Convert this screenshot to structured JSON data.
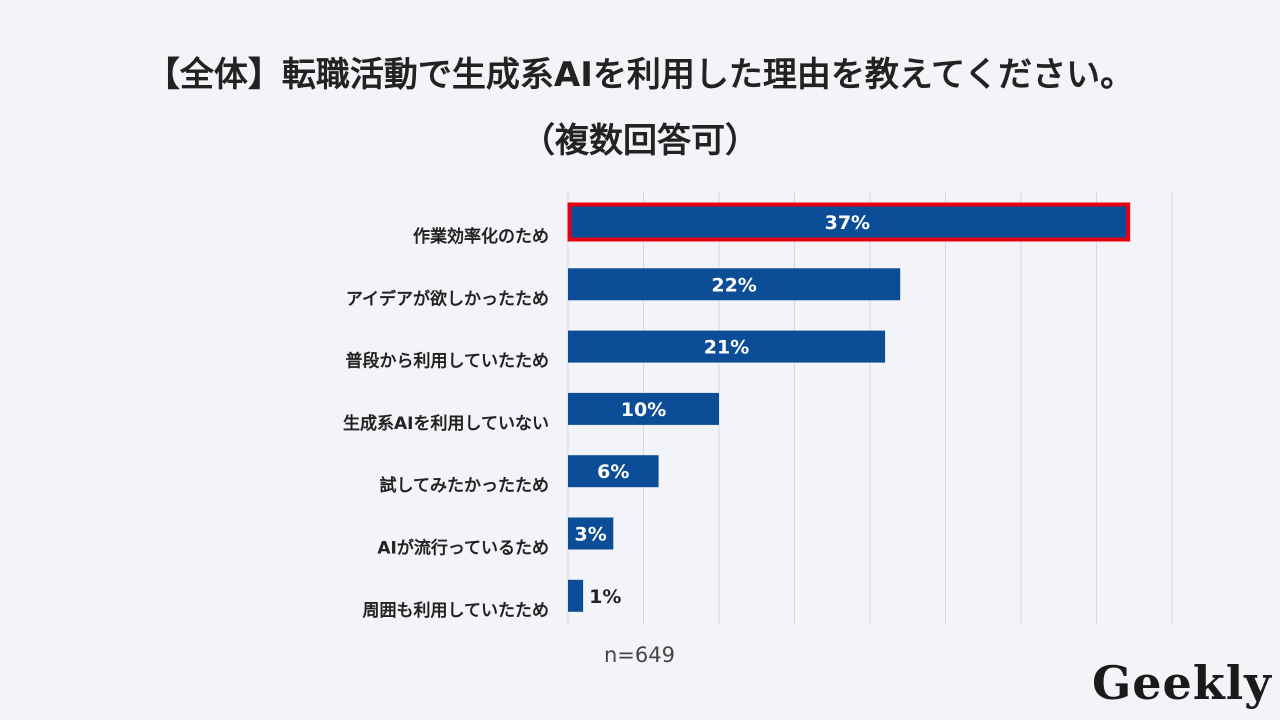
{
  "title": {
    "line1": "【全体】転職活動で生成系AIを利用した理由を教えてください。",
    "line2": "（複数回答可）"
  },
  "sample_note": "n=649",
  "logo": "Geekly",
  "colors": {
    "bar": "#0b4d96",
    "highlight_border": "#e60012",
    "grid": "#d6d9df",
    "label_text": "#222222"
  },
  "chart_data": {
    "type": "bar",
    "orientation": "horizontal",
    "categories": [
      "作業効率化のため",
      "アイデアが欲しかったため",
      "普段から利用していたため",
      "生成系AIを利用していない",
      "試してみたかったため",
      "AIが流行っているため",
      "周囲も利用していたため"
    ],
    "values": [
      37,
      22,
      21,
      10,
      6,
      3,
      1
    ],
    "data_labels": [
      "37%",
      "22%",
      "21%",
      "10%",
      "6%",
      "3%",
      "1%"
    ],
    "xlim": [
      0,
      40
    ],
    "grid": true,
    "highlighted_category": "作業効率化のため"
  }
}
